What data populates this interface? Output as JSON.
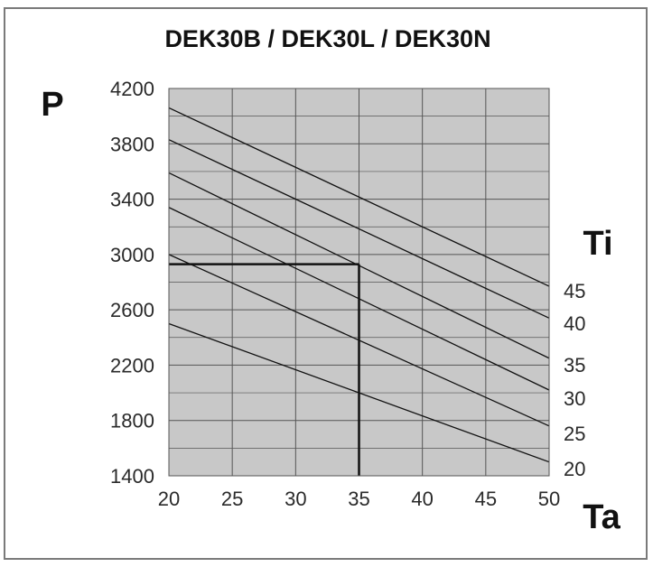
{
  "chart_data": {
    "type": "line",
    "title": "DEK30B / DEK30L / DEK30N",
    "ylabel": "P",
    "xlabel": "Ta",
    "series_axis_label": "Ti",
    "xlim": [
      20,
      50
    ],
    "ylim": [
      1400,
      4200
    ],
    "x_ticks": [
      20,
      25,
      30,
      35,
      40,
      45,
      50
    ],
    "y_ticks": [
      1400,
      1800,
      2200,
      2600,
      3000,
      3400,
      3800,
      4200
    ],
    "grid": true,
    "x": [
      20,
      50
    ],
    "series": [
      {
        "name": "45",
        "values": [
          4060,
          2770
        ]
      },
      {
        "name": "40",
        "values": [
          3830,
          2540
        ]
      },
      {
        "name": "35",
        "values": [
          3590,
          2250
        ]
      },
      {
        "name": "30",
        "values": [
          3340,
          2020
        ]
      },
      {
        "name": "25",
        "values": [
          3000,
          1760
        ]
      },
      {
        "name": "20",
        "values": [
          2500,
          1500
        ]
      }
    ],
    "reference_point": {
      "x": 35,
      "y": 2930
    },
    "colors": {
      "plot_background": "#c8c8c8",
      "grid": "#555555",
      "line": "#111111"
    }
  }
}
